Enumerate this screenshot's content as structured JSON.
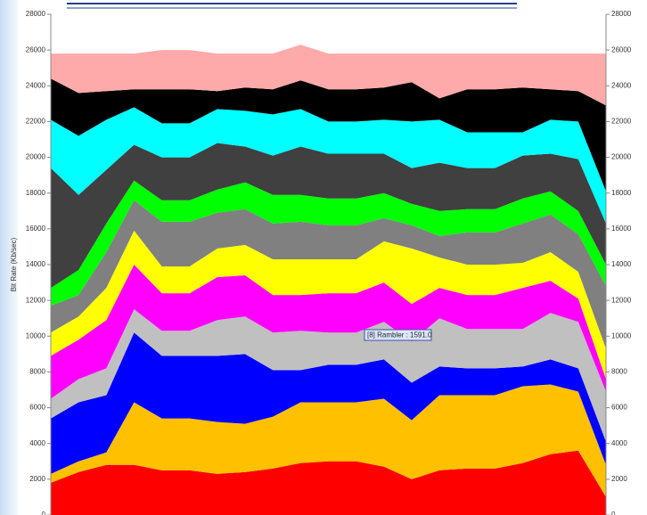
{
  "chart_data": {
    "type": "stacked-area",
    "y_label": "Bit Rate (Kb/sec)",
    "annotation": "[8] Rambler : 1591.0",
    "categories": [
      null,
      null,
      null,
      null,
      null,
      null,
      null,
      null,
      null,
      null,
      null,
      null,
      null,
      null,
      null,
      null,
      null,
      null,
      null,
      null,
      null
    ],
    "ylim": [
      0,
      28000
    ],
    "yticks": [
      0,
      2000,
      4000,
      6000,
      8000,
      10000,
      12000,
      14000,
      16000,
      18000,
      20000,
      22000,
      24000,
      26000,
      28000
    ],
    "series": [
      {
        "color": "#ff0000",
        "values": [
          1800,
          2400,
          2800,
          2800,
          2500,
          2500,
          2300,
          2400,
          2600,
          2900,
          3000,
          3000,
          2700,
          2000,
          2500,
          2600,
          2600,
          2900,
          3400,
          3600,
          1000
        ]
      },
      {
        "color": "#ffc000",
        "values": [
          500,
          600,
          700,
          3500,
          2900,
          2900,
          2900,
          2700,
          2900,
          3400,
          3300,
          3300,
          3800,
          3300,
          4200,
          4100,
          4100,
          4300,
          3900,
          3300,
          1800
        ]
      },
      {
        "color": "#0000ff",
        "values": [
          3100,
          3300,
          3200,
          3900,
          3500,
          3500,
          3700,
          3900,
          2600,
          1800,
          2100,
          2100,
          2200,
          2100,
          1600,
          1500,
          1500,
          1100,
          1400,
          1300,
          1300
        ]
      },
      {
        "color": "#c0c0c0",
        "values": [
          1100,
          1300,
          1500,
          1300,
          1400,
          1400,
          2000,
          2100,
          2100,
          2200,
          1800,
          1800,
          2100,
          2300,
          2700,
          2200,
          2200,
          2100,
          2600,
          2600,
          2800
        ]
      },
      {
        "color": "#ff00ff",
        "values": [
          2400,
          2200,
          2700,
          2500,
          2100,
          2100,
          2400,
          2300,
          2100,
          2000,
          2200,
          2200,
          2200,
          2100,
          1700,
          1900,
          1900,
          2300,
          1800,
          1300,
          700
        ]
      },
      {
        "color": "#ffff00",
        "values": [
          1300,
          1300,
          1800,
          1900,
          1500,
          1500,
          1600,
          1700,
          2000,
          2000,
          1900,
          1900,
          2300,
          3100,
          1700,
          1700,
          1700,
          1400,
          1600,
          1500,
          1700
        ]
      },
      {
        "color": "#808080",
        "values": [
          1500,
          1200,
          2000,
          1700,
          2500,
          2500,
          2000,
          2000,
          2000,
          2100,
          1900,
          1900,
          1300,
          1300,
          1200,
          1800,
          1800,
          2200,
          2100,
          2100,
          3500
        ]
      },
      {
        "color": "#00ff00",
        "values": [
          1000,
          1400,
          1600,
          1100,
          1200,
          1200,
          1300,
          1500,
          1600,
          1500,
          1500,
          1500,
          1400,
          1200,
          1400,
          1300,
          1300,
          1400,
          1300,
          1300,
          1200
        ]
      },
      {
        "color": "#404040",
        "values": [
          6700,
          4200,
          3000,
          2000,
          2400,
          2400,
          2600,
          2000,
          2200,
          2700,
          2500,
          2500,
          2200,
          2000,
          2700,
          2300,
          2300,
          2400,
          2100,
          2900,
          2300
        ]
      },
      {
        "color": "#00ffff",
        "values": [
          2700,
          3300,
          2800,
          2100,
          1900,
          1900,
          1900,
          2000,
          2300,
          2100,
          1800,
          1800,
          1900,
          2600,
          2400,
          2000,
          2000,
          1300,
          1900,
          2100,
          1800
        ]
      },
      {
        "color": "#000000",
        "values": [
          2300,
          2400,
          1600,
          1000,
          1900,
          1900,
          1000,
          1300,
          1400,
          1600,
          1800,
          1800,
          1800,
          2200,
          1200,
          2400,
          2400,
          2500,
          1700,
          1700,
          4800
        ]
      },
      {
        "color": "#ffaaaa",
        "values": [
          1400,
          2200,
          2100,
          2000,
          2200,
          2200,
          2100,
          1900,
          2000,
          2000,
          2000,
          2000,
          1900,
          1600,
          2500,
          2000,
          2000,
          1900,
          2000,
          2100,
          2900
        ]
      }
    ]
  }
}
